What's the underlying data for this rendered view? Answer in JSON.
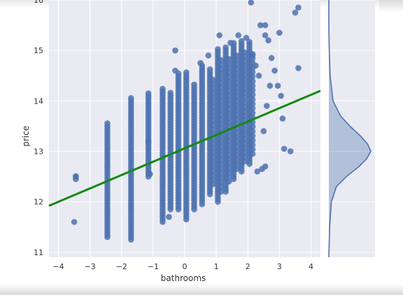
{
  "chart_data": [
    {
      "type": "scatter",
      "title": "",
      "xlabel": "bathrooms",
      "ylabel": "price",
      "xlim": [
        -4.3,
        4.3
      ],
      "ylim": [
        10.9,
        16.0
      ],
      "xticks": [
        -4,
        -3,
        -2,
        -1,
        0,
        1,
        2,
        3,
        4
      ],
      "yticks": [
        11,
        12,
        13,
        14,
        15,
        16
      ],
      "grid": true,
      "colors": {
        "points": "#4c72b0",
        "fit_line": "#118a11",
        "background": "#eaeaf2"
      },
      "columns": [
        {
          "x": -3.45,
          "y_min": 12.45,
          "y_max": 12.55
        },
        {
          "x": -2.45,
          "y_min": 11.3,
          "y_max": 13.6
        },
        {
          "x": -1.7,
          "y_min": 11.25,
          "y_max": 14.1
        },
        {
          "x": -1.15,
          "y_min": 12.5,
          "y_max": 14.15
        },
        {
          "x": -0.7,
          "y_min": 11.6,
          "y_max": 14.25
        },
        {
          "x": -0.45,
          "y_min": 11.85,
          "y_max": 14.2
        },
        {
          "x": -0.2,
          "y_min": 11.85,
          "y_max": 14.55
        },
        {
          "x": 0.05,
          "y_min": 11.65,
          "y_max": 14.6
        },
        {
          "x": 0.3,
          "y_min": 11.85,
          "y_max": 14.35
        },
        {
          "x": 0.55,
          "y_min": 11.95,
          "y_max": 14.75
        },
        {
          "x": 0.8,
          "y_min": 12.15,
          "y_max": 14.65
        },
        {
          "x": 1.05,
          "y_min": 12.0,
          "y_max": 15.05
        },
        {
          "x": 1.3,
          "y_min": 12.2,
          "y_max": 15.1
        },
        {
          "x": 1.55,
          "y_min": 12.45,
          "y_max": 15.15
        },
        {
          "x": 1.8,
          "y_min": 12.6,
          "y_max": 15.2
        },
        {
          "x": 2.05,
          "y_min": 12.75,
          "y_max": 15.2
        }
      ],
      "points": [
        {
          "x": -3.5,
          "y": 11.6
        },
        {
          "x": -3.45,
          "y": 12.5
        },
        {
          "x": -1.15,
          "y": 13.2
        },
        {
          "x": -1.1,
          "y": 12.55
        },
        {
          "x": -0.5,
          "y": 11.7
        },
        {
          "x": -0.3,
          "y": 14.6
        },
        {
          "x": -0.3,
          "y": 15.0
        },
        {
          "x": 0.5,
          "y": 14.75
        },
        {
          "x": 0.75,
          "y": 14.9
        },
        {
          "x": 1.1,
          "y": 15.3
        },
        {
          "x": 1.45,
          "y": 15.15
        },
        {
          "x": 2.1,
          "y": 15.95
        },
        {
          "x": 2.4,
          "y": 15.5
        },
        {
          "x": 2.55,
          "y": 15.3
        },
        {
          "x": 2.55,
          "y": 15.5
        },
        {
          "x": 2.65,
          "y": 15.2
        },
        {
          "x": 2.75,
          "y": 14.85
        },
        {
          "x": 2.85,
          "y": 14.6
        },
        {
          "x": 2.95,
          "y": 14.3
        },
        {
          "x": 3.0,
          "y": 15.35
        },
        {
          "x": 3.05,
          "y": 14.1
        },
        {
          "x": 3.1,
          "y": 13.65
        },
        {
          "x": 3.15,
          "y": 13.05
        },
        {
          "x": 3.35,
          "y": 13.0
        },
        {
          "x": 3.5,
          "y": 15.75
        },
        {
          "x": 3.6,
          "y": 15.85
        },
        {
          "x": 3.6,
          "y": 14.65
        },
        {
          "x": 2.45,
          "y": 12.65
        },
        {
          "x": 2.3,
          "y": 12.6
        },
        {
          "x": 2.5,
          "y": 13.4
        },
        {
          "x": 2.55,
          "y": 12.7
        },
        {
          "x": 2.6,
          "y": 13.9
        },
        {
          "x": 2.7,
          "y": 14.3
        },
        {
          "x": 2.35,
          "y": 14.5
        },
        {
          "x": 2.25,
          "y": 14.7
        },
        {
          "x": 2.15,
          "y": 14.9
        },
        {
          "x": 1.95,
          "y": 15.25
        },
        {
          "x": 1.7,
          "y": 15.3
        }
      ],
      "fit_line": {
        "x": [
          -4.3,
          4.3
        ],
        "y": [
          11.92,
          14.2
        ]
      },
      "marginal_density": {
        "type": "area",
        "x": [
          10.9,
          11.5,
          12.0,
          12.3,
          12.5,
          12.7,
          12.85,
          13.0,
          13.15,
          13.3,
          13.5,
          13.7,
          14.0,
          14.5,
          15.0,
          15.5,
          16.0
        ],
        "density": [
          0.0,
          0.02,
          0.06,
          0.18,
          0.42,
          0.72,
          0.9,
          1.0,
          0.92,
          0.76,
          0.5,
          0.28,
          0.1,
          0.03,
          0.01,
          0.0,
          0.0
        ]
      }
    }
  ]
}
